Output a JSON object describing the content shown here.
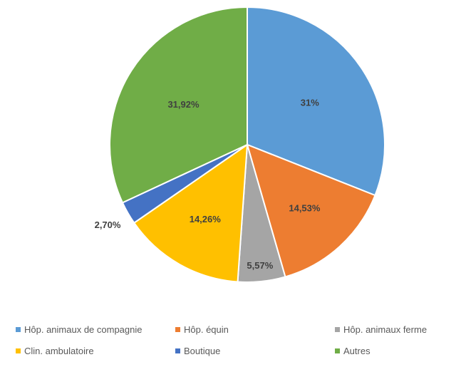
{
  "chart_data": {
    "type": "pie",
    "slices": [
      {
        "label": "Hôp. animaux de compagnie",
        "value": 31,
        "display": "31%",
        "color": "#5B9BD5"
      },
      {
        "label": "Hôp. équin",
        "value": 14.53,
        "display": "14,53%",
        "color": "#ED7D31"
      },
      {
        "label": "Hôp. animaux ferme",
        "value": 5.57,
        "display": "5,57%",
        "color": "#A5A5A5"
      },
      {
        "label": "Clin. ambulatoire",
        "value": 14.26,
        "display": "14,26%",
        "color": "#FFC000"
      },
      {
        "label": "Boutique",
        "value": 2.7,
        "display": "2,70%",
        "color": "#4472C4"
      },
      {
        "label": "Autres",
        "value": 31.92,
        "display": "31,92%",
        "color": "#70AD47"
      }
    ],
    "start_angle": "12 o'clock",
    "direction": "clockwise",
    "legend_position": "bottom"
  }
}
